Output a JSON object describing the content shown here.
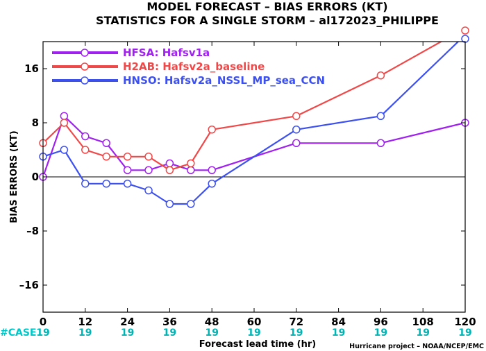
{
  "chart_data": {
    "type": "line",
    "title": "MODEL FORECAST – BIAS ERRORS (KT)",
    "subtitle": "STATISTICS FOR A SINGLE STORM – al172023_PHILIPPE",
    "xlabel": "Forecast lead time (hr)",
    "ylabel": "BIAS ERRORS (KT)",
    "xlim": [
      0,
      120
    ],
    "ylim": [
      -20,
      20
    ],
    "x_ticks": [
      0,
      12,
      24,
      36,
      48,
      60,
      72,
      84,
      96,
      108,
      120
    ],
    "y_ticks": [
      -16,
      -8,
      0,
      8,
      16
    ],
    "zero_line": true,
    "legend_position": "top-left",
    "series": [
      {
        "name": "HFSA: Hafsv1a",
        "color": "#a020f0",
        "x": [
          0,
          6,
          12,
          18,
          24,
          30,
          36,
          42,
          48,
          72,
          96,
          120
        ],
        "y": [
          0,
          9,
          6,
          5,
          1,
          1,
          2,
          1,
          1,
          5,
          5,
          8
        ]
      },
      {
        "name": "H2AB: Hafsv2a_baseline",
        "color": "#f04848",
        "x": [
          0,
          6,
          12,
          18,
          24,
          30,
          36,
          42,
          48,
          72,
          96,
          120
        ],
        "y": [
          5,
          8,
          4,
          3,
          3,
          3,
          1,
          2,
          7,
          9,
          15,
          22
        ]
      },
      {
        "name": "HNSO: Hafsv2a_NSSL_MP_sea_CCN",
        "color": "#3c50f0",
        "x": [
          0,
          6,
          12,
          18,
          24,
          30,
          36,
          42,
          48,
          72,
          96,
          120
        ],
        "y": [
          3,
          4,
          -1,
          -1,
          -1,
          -2,
          -4,
          -4,
          -1,
          7,
          9,
          21
        ]
      }
    ],
    "case_label": "#CASE",
    "case_counts": [
      "19",
      "19",
      "19",
      "19",
      "19",
      "19",
      "19",
      "19",
      "19",
      "19",
      "19"
    ],
    "colors": {
      "case_label": "#00c8c8",
      "case_counts": "#00b4b4",
      "zero_line": "#000000"
    }
  },
  "credit": "Hurricane project – NOAA/NCEP/EMC"
}
